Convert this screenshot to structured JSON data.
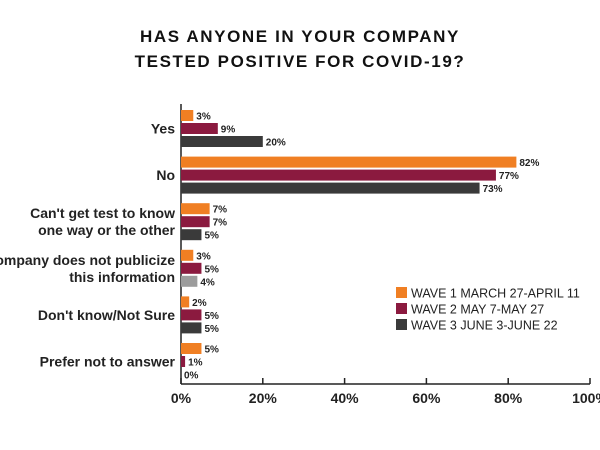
{
  "chart_data": {
    "type": "bar",
    "orientation": "horizontal",
    "title_lines": [
      "HAS ANYONE IN YOUR COMPANY",
      "TESTED POSITIVE FOR COVID-19?"
    ],
    "categories": [
      [
        "Yes"
      ],
      [
        "No"
      ],
      [
        "Can't get test to know",
        "one way or the other"
      ],
      [
        "Company does not publicize",
        "this information"
      ],
      [
        "Don't know/Not Sure"
      ],
      [
        "Prefer not to answer"
      ]
    ],
    "series": [
      {
        "name": "WAVE 1 MARCH 27-APRIL 11",
        "color": "#f07f23",
        "values": [
          3,
          82,
          7,
          3,
          2,
          5
        ]
      },
      {
        "name": "WAVE 2 MAY 7-MAY 27",
        "color": "#8b1a3f",
        "values": [
          9,
          77,
          7,
          5,
          5,
          1
        ]
      },
      {
        "name": "WAVE 3 JUNE 3-JUNE 22",
        "color": "#3a3a3a",
        "values": [
          20,
          73,
          5,
          4,
          5,
          0
        ]
      }
    ],
    "bar_color_overrides": [
      {
        "series": 2,
        "category": 3,
        "color": "#9c9c9c"
      }
    ],
    "value_suffix": "%",
    "xlim": [
      0,
      100
    ],
    "xticks": [
      "0%",
      "20%",
      "40%",
      "60%",
      "80%",
      "100%"
    ],
    "xlabel": "",
    "ylabel": "",
    "grid": false,
    "legend_position": "right"
  }
}
